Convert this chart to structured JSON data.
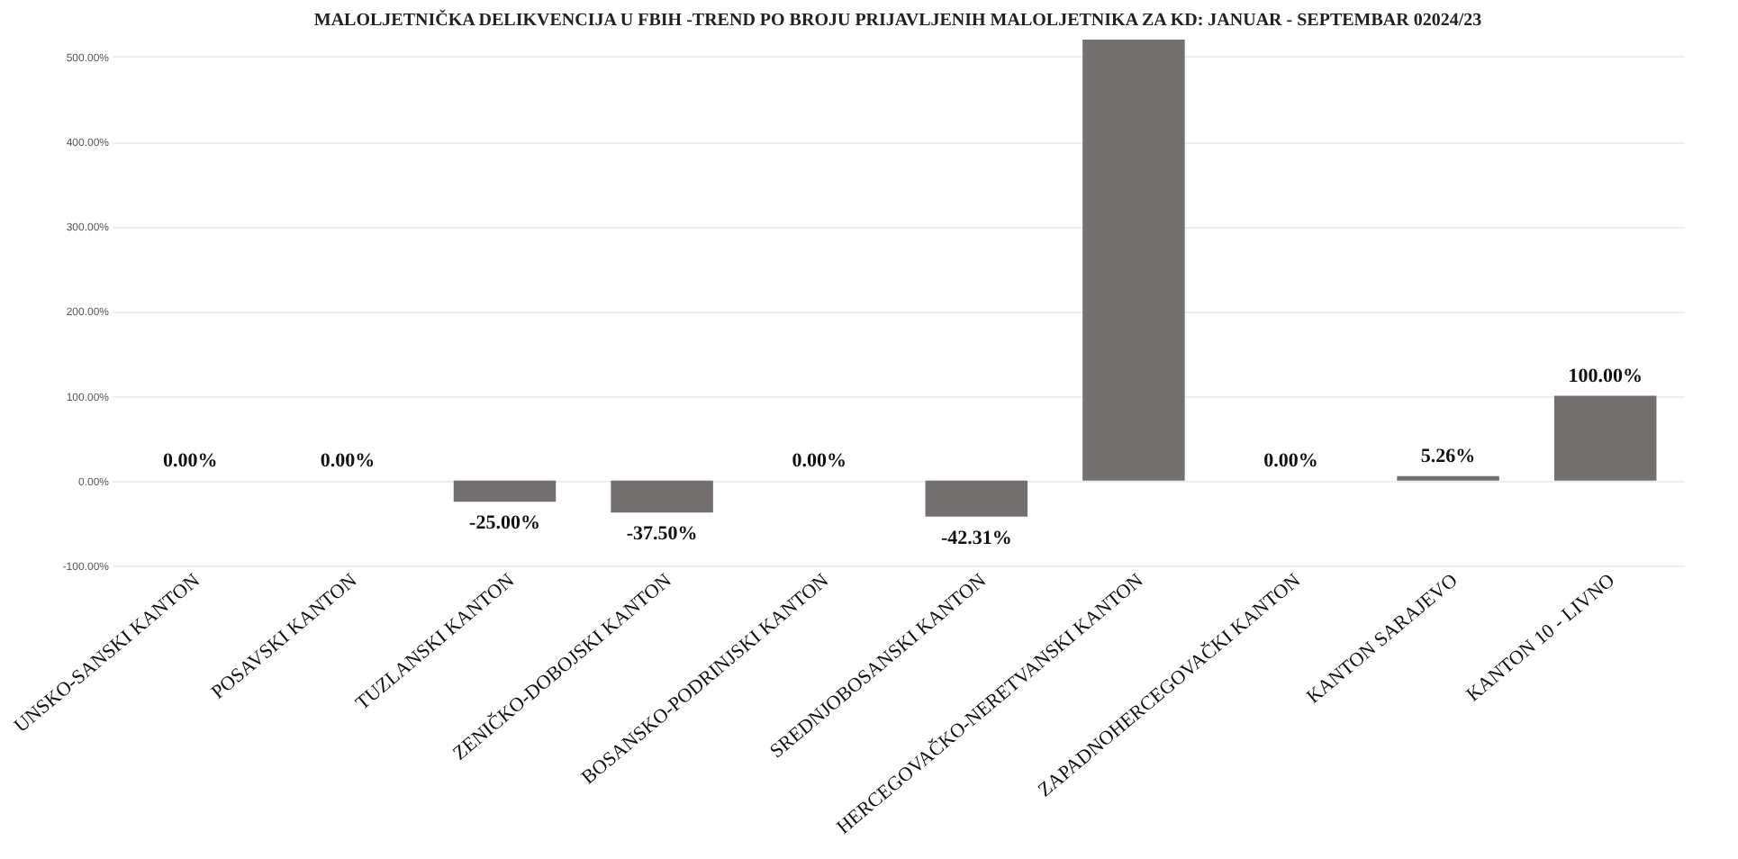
{
  "chart_data": {
    "type": "bar",
    "title": "MALOLJETNIČKA DELIKVENCIJA U FBIH  -TREND PO BROJU PRIJAVLJENIH MALOLJETNIKA ZA KD:  JANUAR - SEPTEMBAR 02024/23",
    "categories": [
      "UNSKO-SANSKI KANTON",
      "POSAVSKI KANTON",
      "TUZLANSKI KANTON",
      "ZENIČKO-DOBOJSKI KANTON",
      "BOSANSKO-PODRINJSKI KANTON",
      "SREDNJOBOSANSKI KANTON",
      "HERCEGOVAČKO-NERETVANSKI KANTON",
      "ZAPADNOHERCEGOVAČKI KANTON",
      "KANTON SARAJEVO",
      "KANTON 10 - LIVNO"
    ],
    "values": [
      0,
      0,
      -25,
      -37.5,
      0,
      -42.31,
      520,
      0,
      5.26,
      100
    ],
    "value_labels": [
      "0.00%",
      "0.00%",
      "-25.00%",
      "-37.50%",
      "0.00%",
      "-42.31%",
      null,
      "0.00%",
      "5.26%",
      "100.00%"
    ],
    "color": "#757070",
    "ylim": [
      -100,
      520
    ],
    "yticks": [
      {
        "value": -100,
        "label": "-100.00%"
      },
      {
        "value": 0,
        "label": "0.00%"
      },
      {
        "value": 100,
        "label": "100.00%"
      },
      {
        "value": 200,
        "label": "200.00%"
      },
      {
        "value": 300,
        "label": "300.00%"
      },
      {
        "value": 400,
        "label": "400.00%"
      },
      {
        "value": 500,
        "label": "500.00%"
      }
    ],
    "grid": "y"
  }
}
